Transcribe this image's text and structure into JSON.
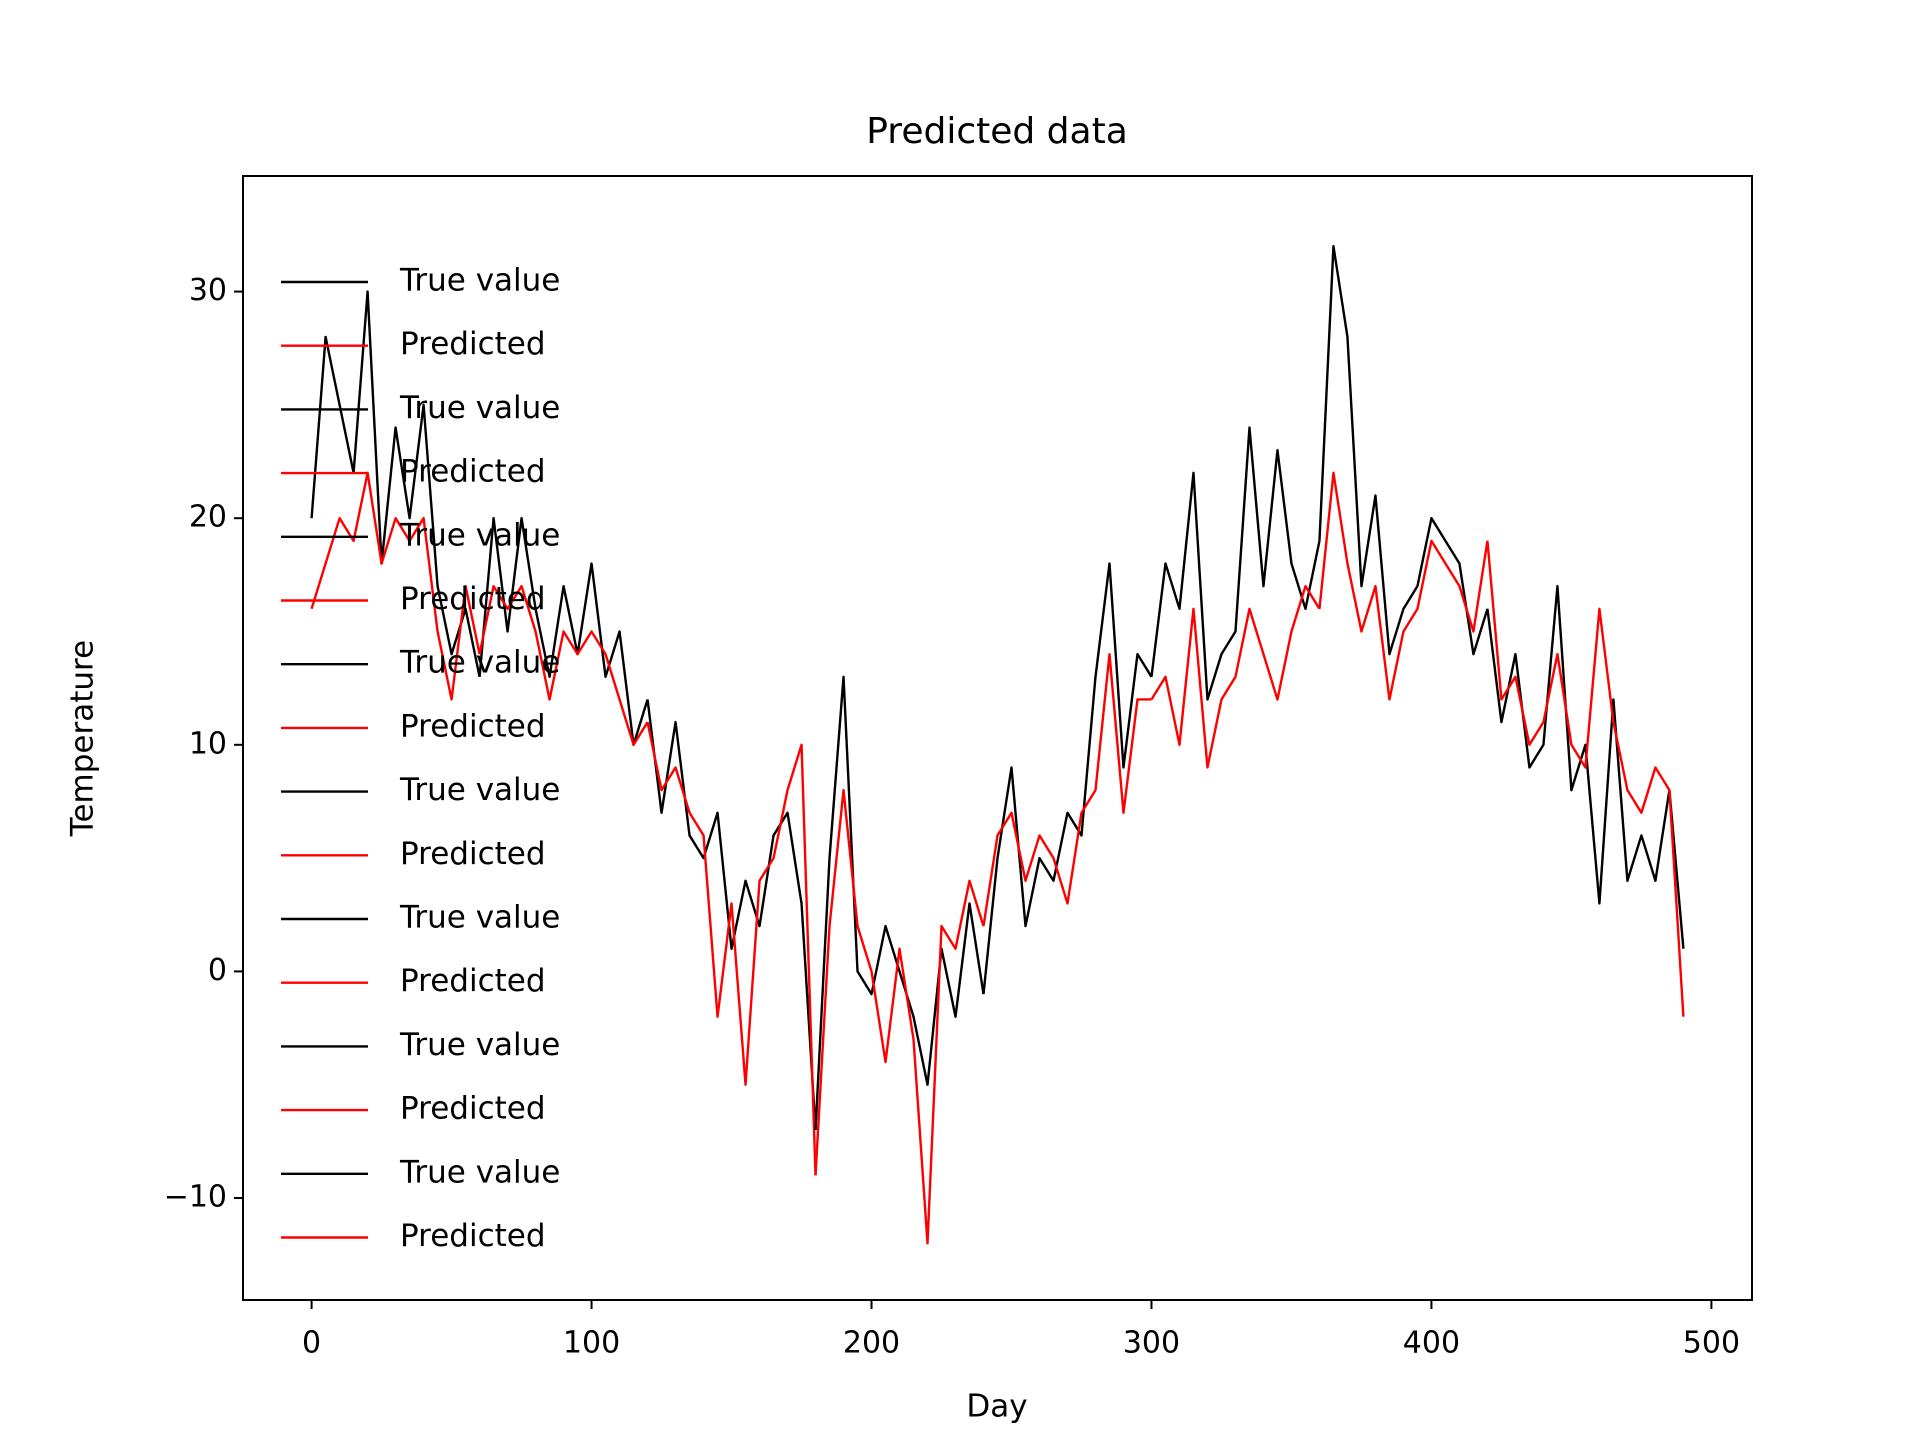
{
  "chart_data": {
    "type": "line",
    "title": "Predicted data",
    "x_label": "Day",
    "y_label": "Temperature",
    "xlim": [
      -24.5,
      514.5
    ],
    "ylim": [
      -14.5,
      35.1
    ],
    "xticks": [
      0,
      100,
      200,
      300,
      400,
      500
    ],
    "yticks": [
      {
        "value": -10,
        "label": "−10"
      },
      0,
      10,
      20,
      30
    ],
    "grid": false,
    "legend": "upper left",
    "series": [
      {
        "name": "True value",
        "color": "#000000",
        "x": [
          0,
          5,
          10,
          15,
          20,
          25,
          30,
          35,
          40,
          45,
          50,
          55,
          60
        ],
        "values": [
          20,
          28,
          25,
          22,
          30,
          18,
          24,
          20,
          25,
          17,
          14,
          16,
          13
        ]
      },
      {
        "name": "Predicted",
        "color": "#ff0000",
        "x": [
          0,
          5,
          10,
          15,
          20,
          25,
          30,
          35,
          40,
          45,
          50,
          55,
          60
        ],
        "values": [
          16,
          18,
          20,
          19,
          22,
          18,
          20,
          19,
          20,
          15,
          12,
          17,
          14
        ]
      },
      {
        "name": "True value",
        "color": "#000000",
        "x": [
          60,
          65,
          70,
          75,
          80,
          85,
          90,
          95,
          100,
          105,
          110,
          115,
          120
        ],
        "values": [
          13,
          20,
          15,
          20,
          16,
          13,
          17,
          14,
          18,
          13,
          15,
          10,
          12
        ]
      },
      {
        "name": "Predicted",
        "color": "#ff0000",
        "x": [
          60,
          65,
          70,
          75,
          80,
          85,
          90,
          95,
          100,
          105,
          110,
          115,
          120
        ],
        "values": [
          14,
          17,
          16,
          17,
          15,
          12,
          15,
          14,
          15,
          14,
          12,
          10,
          11
        ]
      },
      {
        "name": "True value",
        "color": "#000000",
        "x": [
          120,
          125,
          130,
          135,
          140,
          145,
          150,
          155,
          160,
          165,
          170,
          175,
          180
        ],
        "values": [
          12,
          7,
          11,
          6,
          5,
          7,
          1,
          4,
          2,
          6,
          7,
          3,
          -7
        ]
      },
      {
        "name": "Predicted",
        "color": "#ff0000",
        "x": [
          120,
          125,
          130,
          135,
          140,
          145,
          150,
          155,
          160,
          165,
          170,
          175,
          180
        ],
        "values": [
          11,
          8,
          9,
          7,
          6,
          -2,
          3,
          -5,
          4,
          5,
          8,
          10,
          -9
        ]
      },
      {
        "name": "True value",
        "color": "#000000",
        "x": [
          180,
          185,
          190,
          195,
          200,
          205,
          210,
          215,
          220,
          225,
          230,
          235,
          240
        ],
        "values": [
          -7,
          5,
          13,
          0,
          -1,
          2,
          0,
          -2,
          -5,
          1,
          -2,
          3,
          -1
        ]
      },
      {
        "name": "Predicted",
        "color": "#ff0000",
        "x": [
          180,
          185,
          190,
          195,
          200,
          205,
          210,
          215,
          220,
          225,
          230,
          235,
          240
        ],
        "values": [
          -9,
          2,
          8,
          2,
          0,
          -4,
          1,
          -3,
          -12,
          2,
          1,
          4,
          2
        ]
      },
      {
        "name": "True value",
        "color": "#000000",
        "x": [
          240,
          245,
          250,
          255,
          260,
          265,
          270,
          275,
          280,
          285,
          290,
          295,
          300
        ],
        "values": [
          -1,
          5,
          9,
          2,
          5,
          4,
          7,
          6,
          13,
          18,
          9,
          14,
          13
        ]
      },
      {
        "name": "Predicted",
        "color": "#ff0000",
        "x": [
          240,
          245,
          250,
          255,
          260,
          265,
          270,
          275,
          280,
          285,
          290,
          295,
          300
        ],
        "values": [
          2,
          6,
          7,
          4,
          6,
          5,
          3,
          7,
          8,
          14,
          7,
          12,
          12
        ]
      },
      {
        "name": "True value",
        "color": "#000000",
        "x": [
          300,
          305,
          310,
          315,
          320,
          325,
          330,
          335,
          340,
          345,
          350,
          355,
          360
        ],
        "values": [
          13,
          18,
          16,
          22,
          12,
          14,
          15,
          24,
          17,
          23,
          18,
          16,
          19
        ]
      },
      {
        "name": "Predicted",
        "color": "#ff0000",
        "x": [
          300,
          305,
          310,
          315,
          320,
          325,
          330,
          335,
          340,
          345,
          350,
          355,
          360
        ],
        "values": [
          12,
          13,
          10,
          16,
          9,
          12,
          13,
          16,
          14,
          12,
          15,
          17,
          16
        ]
      },
      {
        "name": "True value",
        "color": "#000000",
        "x": [
          360,
          365,
          370,
          375,
          380,
          385,
          390,
          395,
          400,
          405,
          410,
          415,
          420
        ],
        "values": [
          19,
          32,
          28,
          17,
          21,
          14,
          16,
          17,
          20,
          19,
          18,
          14,
          16
        ]
      },
      {
        "name": "Predicted",
        "color": "#ff0000",
        "x": [
          360,
          365,
          370,
          375,
          380,
          385,
          390,
          395,
          400,
          405,
          410,
          415,
          420
        ],
        "values": [
          16,
          22,
          18,
          15,
          17,
          12,
          15,
          16,
          19,
          18,
          17,
          15,
          19
        ]
      },
      {
        "name": "True value",
        "color": "#000000",
        "x": [
          420,
          425,
          430,
          435,
          440,
          445,
          450,
          455,
          460,
          465,
          470,
          475,
          480,
          485,
          490
        ],
        "values": [
          16,
          11,
          14,
          9,
          10,
          17,
          8,
          10,
          3,
          12,
          4,
          6,
          4,
          8,
          1
        ]
      },
      {
        "name": "Predicted",
        "color": "#ff0000",
        "x": [
          420,
          425,
          430,
          435,
          440,
          445,
          450,
          455,
          460,
          465,
          470,
          475,
          480,
          485,
          490
        ],
        "values": [
          19,
          12,
          13,
          10,
          11,
          14,
          10,
          9,
          16,
          11,
          8,
          7,
          9,
          8,
          -2
        ]
      }
    ]
  }
}
